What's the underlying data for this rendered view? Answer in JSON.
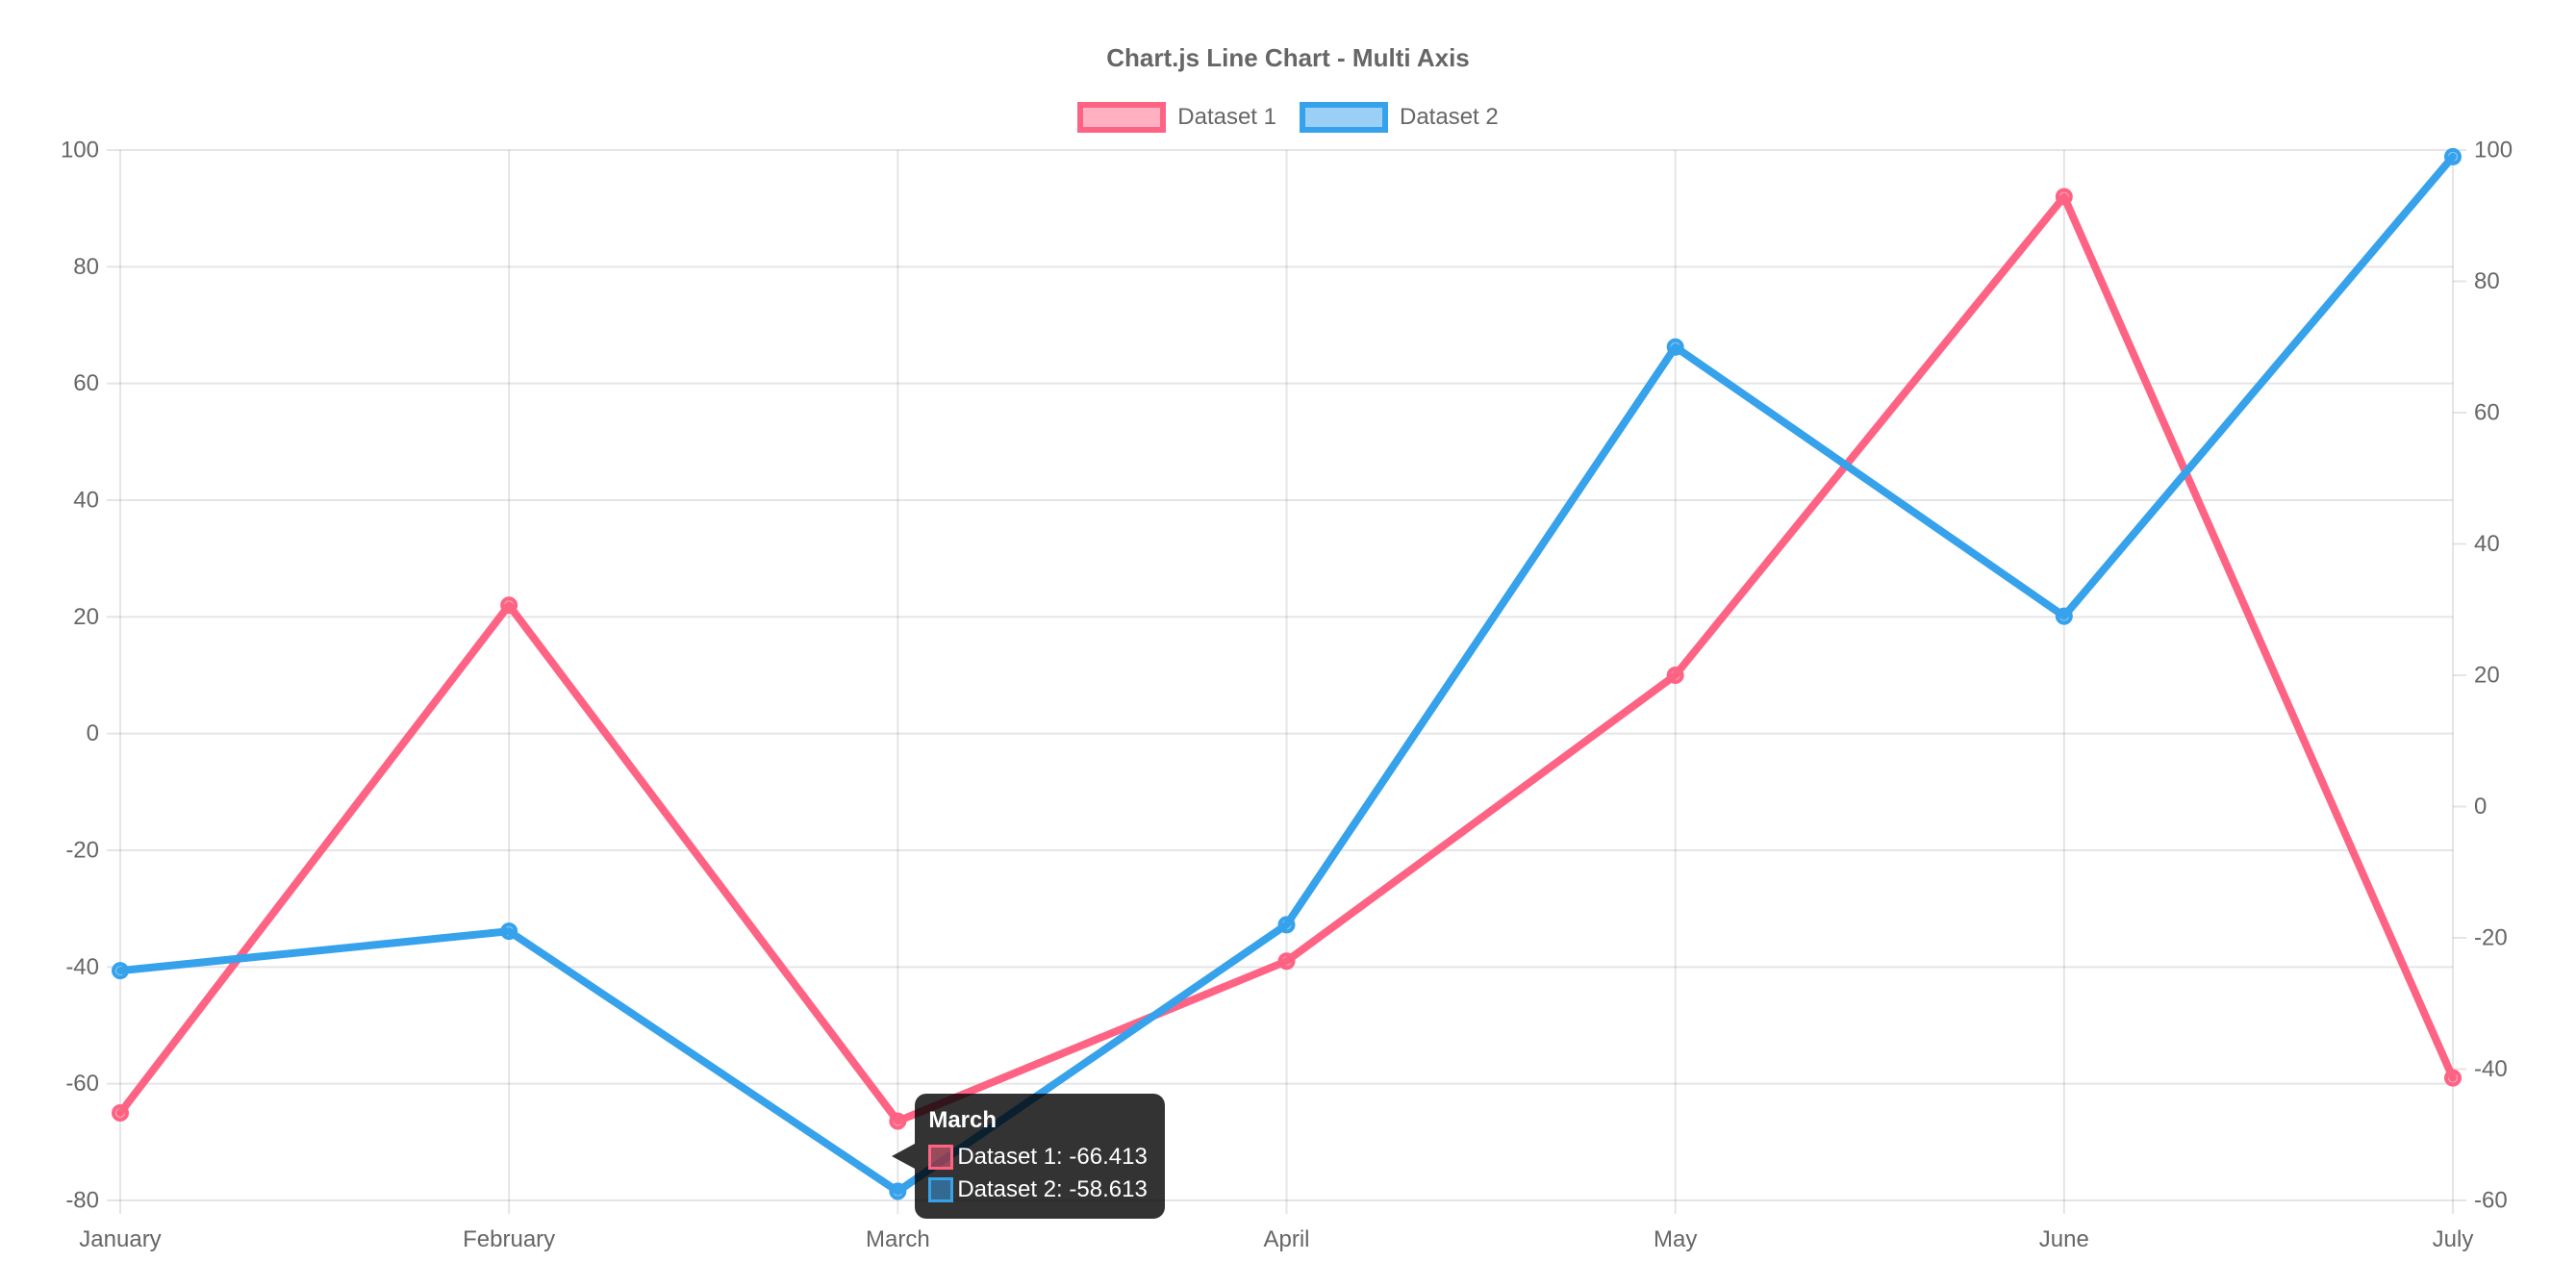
{
  "page": {
    "background": "#ffffff",
    "text_color": "#666666"
  },
  "chart_data": {
    "type": "line",
    "title": "Chart.js Line Chart - Multi Axis",
    "categories": [
      "January",
      "February",
      "March",
      "April",
      "May",
      "June",
      "July"
    ],
    "series": [
      {
        "name": "Dataset 1",
        "axis": "left",
        "color": "#ff6384",
        "fill_color": "rgba(255,99,132,0.5)",
        "values": [
          -65,
          22,
          -66.413,
          -39,
          10,
          92,
          -59
        ]
      },
      {
        "name": "Dataset 2",
        "axis": "right",
        "color": "#36a2eb",
        "fill_color": "rgba(54,162,235,0.5)",
        "values": [
          -25,
          -19,
          -58.613,
          -18,
          70,
          29,
          99
        ]
      }
    ],
    "axes": {
      "left": {
        "min": -80,
        "max": 100,
        "tick_step": 20,
        "ticks": [
          100,
          80,
          60,
          40,
          20,
          0,
          -20,
          -40,
          -60,
          -80
        ]
      },
      "right": {
        "min": -60,
        "max": 100,
        "tick_step": 20,
        "ticks": [
          100,
          80,
          60,
          40,
          20,
          0,
          -20,
          -40,
          -60
        ]
      }
    },
    "grid": {
      "horizontal": true,
      "vertical": true,
      "color": "rgba(0,0,0,0.1)"
    },
    "legend_position": "top",
    "text_color": "#666666"
  },
  "tooltip": {
    "title": "March",
    "anchor_category": "March",
    "background": "rgba(0,0,0,0.8)",
    "text_color": "#ffffff",
    "rows": [
      {
        "label": "Dataset 1: -66.413",
        "swatch_fill": "rgba(255,99,132,0.5)",
        "swatch_border": "#ff6384"
      },
      {
        "label": "Dataset 2: -58.613",
        "swatch_fill": "rgba(54,162,235,0.5)",
        "swatch_border": "#36a2eb"
      }
    ]
  }
}
